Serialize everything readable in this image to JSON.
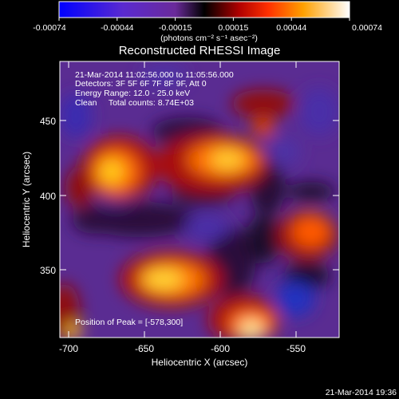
{
  "colorbar": {
    "ticks": [
      "-0.00074",
      "-0.00044",
      "-0.00015",
      "0.00015",
      "0.00044",
      "0.00074"
    ],
    "units": "(photons cm⁻² s⁻¹ asec⁻²)"
  },
  "title": "Reconstructed RHESSI Image",
  "info": {
    "line1": "21-Mar-2014 11:02:56.000 to 11:05:56.000",
    "line2": "Detectors: 3F 5F 6F 7F 8F 9F, Att 0",
    "line3": "Energy Range: 12.0 - 25.0 keV",
    "line4": "Clean     Total counts: 8.74E+03",
    "peak": "Position of Peak = [-578,300]"
  },
  "axes": {
    "xlabel": "Heliocentric X (arcsec)",
    "ylabel": "Heliocentric Y (arcsec)",
    "xticks": [
      "-700",
      "-650",
      "-600",
      "-550"
    ],
    "yticks": [
      "450",
      "400",
      "350"
    ]
  },
  "timestamp": "21-Mar-2014 19:36"
}
